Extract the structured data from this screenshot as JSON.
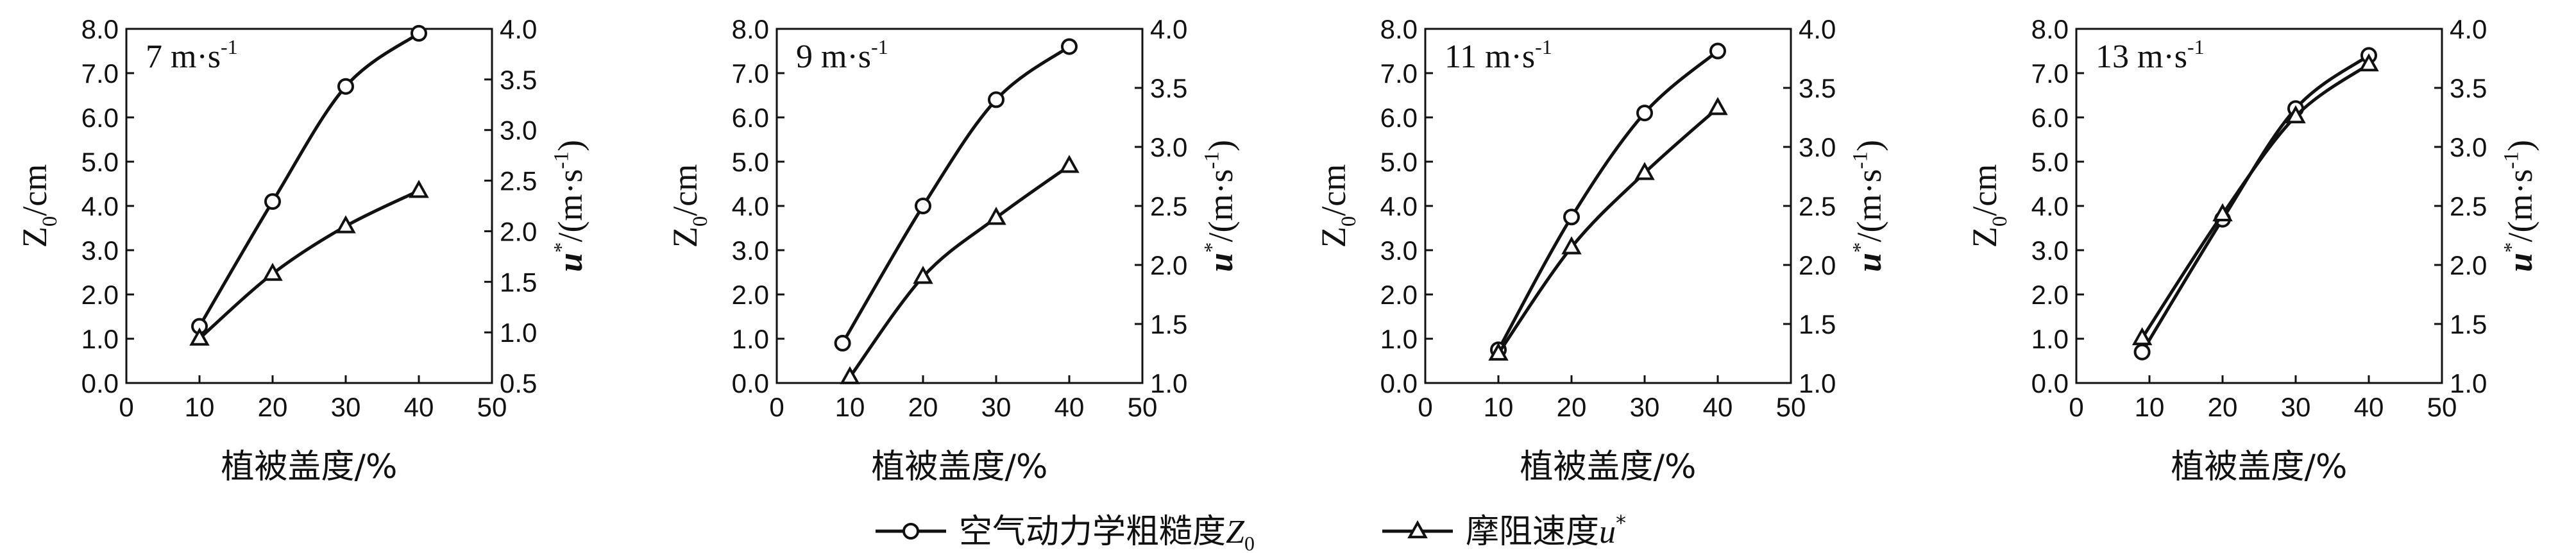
{
  "chart_data": [
    {
      "type": "line",
      "annotation": "7 m·s⁻¹",
      "xlabel": "植被盖度/%",
      "ylabel_left": "Z₀/cm",
      "ylabel_right": "u*/(m·s⁻¹)",
      "xlim": [
        0,
        50
      ],
      "ylim_left": [
        0,
        8
      ],
      "ylim_right": [
        0.5,
        4.0
      ],
      "xticks": [
        "0",
        "10",
        "20",
        "30",
        "40",
        "50"
      ],
      "yticks_left": [
        "0.0",
        "1.0",
        "2.0",
        "3.0",
        "4.0",
        "5.0",
        "6.0",
        "7.0",
        "8.0"
      ],
      "yticks_right": [
        "0.5",
        "1.0",
        "1.5",
        "2.0",
        "2.5",
        "3.0",
        "3.5",
        "4.0"
      ],
      "series": [
        {
          "name": "空气动力学粗糙度Z₀",
          "axis": "left",
          "marker": "circle",
          "x": [
            10,
            20,
            30,
            40
          ],
          "values": [
            1.28,
            4.1,
            6.7,
            7.9
          ]
        },
        {
          "name": "摩阻速度u*",
          "axis": "right",
          "marker": "triangle",
          "x": [
            10,
            20,
            30,
            40
          ],
          "values": [
            0.94,
            1.58,
            2.05,
            2.4
          ]
        }
      ]
    },
    {
      "type": "line",
      "annotation": "9 m·s⁻¹",
      "xlabel": "植被盖度/%",
      "ylabel_left": "Z₀/cm",
      "ylabel_right": "u*/(m·s⁻¹)",
      "xlim": [
        0,
        50
      ],
      "ylim_left": [
        0,
        8
      ],
      "ylim_right": [
        1.0,
        4.0
      ],
      "xticks": [
        "0",
        "10",
        "20",
        "30",
        "40",
        "50"
      ],
      "yticks_left": [
        "0.0",
        "1.0",
        "2.0",
        "3.0",
        "4.0",
        "5.0",
        "6.0",
        "7.0",
        "8.0"
      ],
      "yticks_right": [
        "1.0",
        "1.5",
        "2.0",
        "2.5",
        "3.0",
        "3.5",
        "4.0"
      ],
      "series": [
        {
          "name": "空气动力学粗糙度Z₀",
          "axis": "left",
          "marker": "circle",
          "x": [
            9,
            20,
            30,
            40
          ],
          "values": [
            0.9,
            4.0,
            6.4,
            7.6
          ]
        },
        {
          "name": "摩阻速度u*",
          "axis": "right",
          "marker": "triangle",
          "x": [
            10,
            20,
            30,
            40
          ],
          "values": [
            1.05,
            1.9,
            2.4,
            2.84
          ]
        }
      ]
    },
    {
      "type": "line",
      "annotation": "11 m·s⁻¹",
      "xlabel": "植被盖度/%",
      "ylabel_left": "Z₀/cm",
      "ylabel_right": "u*/(m·s⁻¹)",
      "xlim": [
        0,
        50
      ],
      "ylim_left": [
        0,
        8
      ],
      "ylim_right": [
        1.0,
        4.0
      ],
      "xticks": [
        "0",
        "10",
        "20",
        "30",
        "40",
        "50"
      ],
      "yticks_left": [
        "0.0",
        "1.0",
        "2.0",
        "3.0",
        "4.0",
        "5.0",
        "6.0",
        "7.0",
        "8.0"
      ],
      "yticks_right": [
        "1.0",
        "1.5",
        "2.0",
        "2.5",
        "3.0",
        "3.5",
        "4.0"
      ],
      "series": [
        {
          "name": "空气动力学粗糙度Z₀",
          "axis": "left",
          "marker": "circle",
          "x": [
            10,
            20,
            30,
            40
          ],
          "values": [
            0.75,
            3.75,
            6.1,
            7.5
          ]
        },
        {
          "name": "摩阻速度u*",
          "axis": "right",
          "marker": "triangle",
          "x": [
            10,
            20,
            30,
            40
          ],
          "values": [
            1.25,
            2.15,
            2.78,
            3.33
          ]
        }
      ]
    },
    {
      "type": "line",
      "annotation": "13 m·s⁻¹",
      "xlabel": "植被盖度/%",
      "ylabel_left": "Z₀/cm",
      "ylabel_right": "u*/(m·s⁻¹)",
      "xlim": [
        0,
        50
      ],
      "ylim_left": [
        0,
        8
      ],
      "ylim_right": [
        1.0,
        4.0
      ],
      "xticks": [
        "0",
        "10",
        "20",
        "30",
        "40",
        "50"
      ],
      "yticks_left": [
        "0.0",
        "1.0",
        "2.0",
        "3.0",
        "4.0",
        "5.0",
        "6.0",
        "7.0",
        "8.0"
      ],
      "yticks_right": [
        "1.0",
        "1.5",
        "2.0",
        "2.5",
        "3.0",
        "3.5",
        "4.0"
      ],
      "series": [
        {
          "name": "空气动力学粗糙度Z₀",
          "axis": "left",
          "marker": "circle",
          "x": [
            9,
            20,
            30,
            40
          ],
          "values": [
            0.7,
            3.7,
            6.2,
            7.4
          ]
        },
        {
          "name": "摩阻速度u*",
          "axis": "right",
          "marker": "triangle",
          "x": [
            9,
            20,
            30,
            40
          ],
          "values": [
            1.38,
            2.43,
            3.26,
            3.7
          ]
        }
      ]
    }
  ],
  "legend": {
    "placement": "bottom-center",
    "items": [
      {
        "label": "空气动力学粗糙度Z₀",
        "marker": "circle"
      },
      {
        "label": "摩阻速度u*",
        "marker": "triangle"
      }
    ]
  }
}
